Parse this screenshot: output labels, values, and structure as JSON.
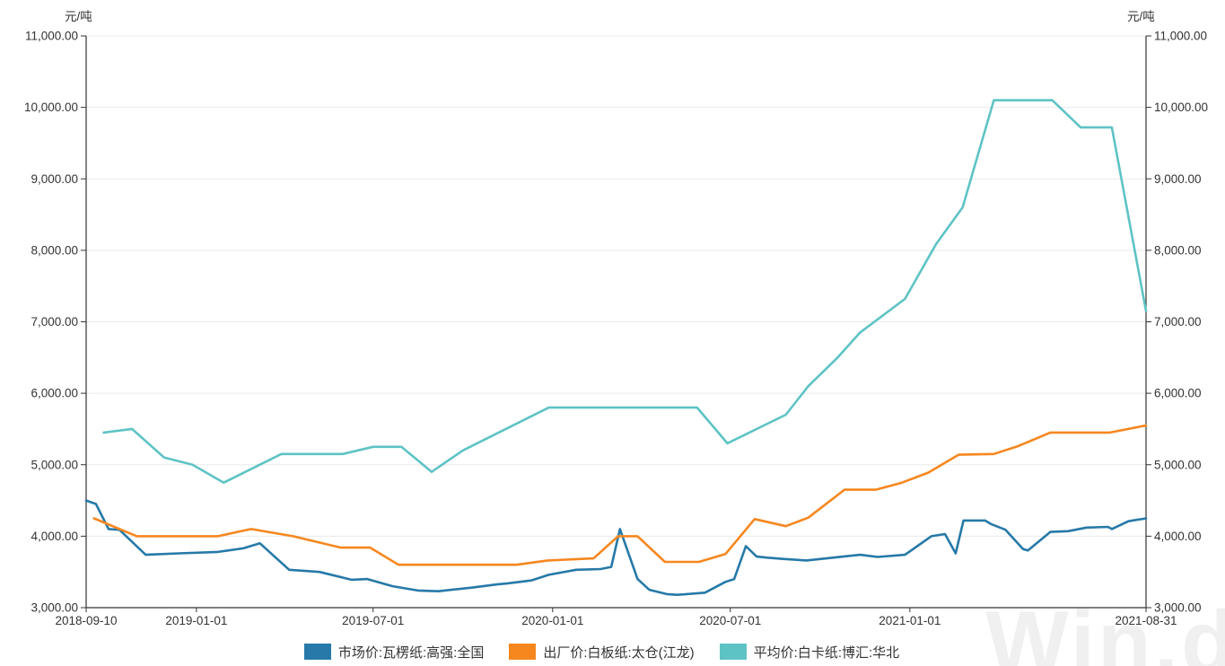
{
  "watermark": "Win.d",
  "chart_data": {
    "type": "line",
    "title": "",
    "unit": "元/吨",
    "x_range": [
      "2018-09-10",
      "2021-08-31"
    ],
    "ylim": [
      3000,
      11000
    ],
    "grid": true,
    "legend_position": "bottom",
    "y_ticks": [
      {
        "value": 3000,
        "label": "3,000.00"
      },
      {
        "value": 4000,
        "label": "4,000.00"
      },
      {
        "value": 5000,
        "label": "5,000.00"
      },
      {
        "value": 6000,
        "label": "6,000.00"
      },
      {
        "value": 7000,
        "label": "7,000.00"
      },
      {
        "value": 8000,
        "label": "8,000.00"
      },
      {
        "value": 9000,
        "label": "9,000.00"
      },
      {
        "value": 10000,
        "label": "10,000.00"
      },
      {
        "value": 11000,
        "label": "11,000.00"
      }
    ],
    "x_ticks": [
      {
        "date": "2018-09-10",
        "label": "2018-09-10"
      },
      {
        "date": "2019-01-01",
        "label": "2019-01-01"
      },
      {
        "date": "2019-07-01",
        "label": "2019-07-01"
      },
      {
        "date": "2020-01-01",
        "label": "2020-01-01"
      },
      {
        "date": "2020-07-01",
        "label": "2020-07-01"
      },
      {
        "date": "2021-01-01",
        "label": "2021-01-01"
      },
      {
        "date": "2021-08-31",
        "label": "2021-08-31"
      }
    ],
    "series": [
      {
        "name": "市场价:瓦楞纸:高强:全国",
        "color": "#2679A8",
        "points": [
          [
            "2018-09-10",
            4500
          ],
          [
            "2018-09-20",
            4450
          ],
          [
            "2018-10-03",
            4100
          ],
          [
            "2018-10-14",
            4090
          ],
          [
            "2018-11-10",
            3740
          ],
          [
            "2018-12-14",
            3760
          ],
          [
            "2019-01-23",
            3780
          ],
          [
            "2019-02-18",
            3830
          ],
          [
            "2019-03-07",
            3900
          ],
          [
            "2019-04-06",
            3530
          ],
          [
            "2019-05-07",
            3500
          ],
          [
            "2019-06-09",
            3390
          ],
          [
            "2019-06-25",
            3400
          ],
          [
            "2019-07-21",
            3300
          ],
          [
            "2019-08-16",
            3240
          ],
          [
            "2019-09-06",
            3230
          ],
          [
            "2019-10-10",
            3280
          ],
          [
            "2019-11-05",
            3325
          ],
          [
            "2019-11-16",
            3340
          ],
          [
            "2019-12-10",
            3380
          ],
          [
            "2019-12-28",
            3460
          ],
          [
            "2020-01-25",
            3530
          ],
          [
            "2020-02-19",
            3540
          ],
          [
            "2020-03-01",
            3570
          ],
          [
            "2020-03-10",
            4100
          ],
          [
            "2020-03-28",
            3400
          ],
          [
            "2020-04-09",
            3250
          ],
          [
            "2020-04-27",
            3190
          ],
          [
            "2020-05-08",
            3180
          ],
          [
            "2020-06-05",
            3210
          ],
          [
            "2020-06-26",
            3360
          ],
          [
            "2020-07-05",
            3400
          ],
          [
            "2020-07-17",
            3860
          ],
          [
            "2020-07-28",
            3715
          ],
          [
            "2020-08-08",
            3700
          ],
          [
            "2020-08-27",
            3680
          ],
          [
            "2020-09-17",
            3660
          ],
          [
            "2020-10-14",
            3700
          ],
          [
            "2020-11-11",
            3740
          ],
          [
            "2020-11-29",
            3710
          ],
          [
            "2020-12-27",
            3740
          ],
          [
            "2021-01-23",
            4000
          ],
          [
            "2021-02-06",
            4030
          ],
          [
            "2021-02-17",
            3760
          ],
          [
            "2021-02-25",
            4220
          ],
          [
            "2021-03-19",
            4220
          ],
          [
            "2021-03-25",
            4170
          ],
          [
            "2021-04-09",
            4090
          ],
          [
            "2021-04-27",
            3820
          ],
          [
            "2021-05-02",
            3800
          ],
          [
            "2021-05-25",
            4060
          ],
          [
            "2021-06-12",
            4070
          ],
          [
            "2021-07-01",
            4120
          ],
          [
            "2021-07-23",
            4130
          ],
          [
            "2021-07-27",
            4100
          ],
          [
            "2021-08-13",
            4210
          ],
          [
            "2021-08-31",
            4250
          ]
        ]
      },
      {
        "name": "出厂价:白板纸:太仓(江龙)",
        "color": "#F6871F",
        "points": [
          [
            "2018-09-18",
            4250
          ],
          [
            "2018-11-01",
            4000
          ],
          [
            "2019-01-23",
            4000
          ],
          [
            "2019-02-26",
            4100
          ],
          [
            "2019-04-10",
            4000
          ],
          [
            "2019-05-29",
            3840
          ],
          [
            "2019-06-28",
            3840
          ],
          [
            "2019-07-27",
            3600
          ],
          [
            "2019-11-25",
            3600
          ],
          [
            "2019-12-27",
            3660
          ],
          [
            "2020-02-12",
            3690
          ],
          [
            "2020-03-08",
            4000
          ],
          [
            "2020-03-28",
            4000
          ],
          [
            "2020-04-25",
            3640
          ],
          [
            "2020-05-30",
            3640
          ],
          [
            "2020-06-26",
            3750
          ],
          [
            "2020-07-26",
            4240
          ],
          [
            "2020-08-27",
            4140
          ],
          [
            "2020-09-19",
            4260
          ],
          [
            "2020-10-26",
            4650
          ],
          [
            "2020-11-27",
            4650
          ],
          [
            "2020-12-24",
            4750
          ],
          [
            "2021-01-20",
            4890
          ],
          [
            "2021-02-20",
            5140
          ],
          [
            "2021-03-28",
            5150
          ],
          [
            "2021-04-22",
            5260
          ],
          [
            "2021-05-25",
            5450
          ],
          [
            "2021-07-25",
            5450
          ],
          [
            "2021-08-31",
            5550
          ]
        ]
      },
      {
        "name": "平均价:白卡纸:博汇:华北",
        "color": "#5EC3C5",
        "points": [
          [
            "2018-09-28",
            5450
          ],
          [
            "2018-10-27",
            5500
          ],
          [
            "2018-11-29",
            5100
          ],
          [
            "2018-12-28",
            5000
          ],
          [
            "2019-01-29",
            4750
          ],
          [
            "2019-03-29",
            5150
          ],
          [
            "2019-05-31",
            5150
          ],
          [
            "2019-07-01",
            5250
          ],
          [
            "2019-07-30",
            5250
          ],
          [
            "2019-08-30",
            4900
          ],
          [
            "2019-10-01",
            5200
          ],
          [
            "2019-12-28",
            5800
          ],
          [
            "2020-05-28",
            5800
          ],
          [
            "2020-06-28",
            5300
          ],
          [
            "2020-08-27",
            5700
          ],
          [
            "2020-09-19",
            6100
          ],
          [
            "2020-10-19",
            6500
          ],
          [
            "2020-11-11",
            6850
          ],
          [
            "2020-12-27",
            7320
          ],
          [
            "2021-01-28",
            8090
          ],
          [
            "2021-02-24",
            8600
          ],
          [
            "2021-03-28",
            10100
          ],
          [
            "2021-05-27",
            10100
          ],
          [
            "2021-06-25",
            9720
          ],
          [
            "2021-07-27",
            9720
          ],
          [
            "2021-08-31",
            7150
          ]
        ]
      }
    ]
  }
}
